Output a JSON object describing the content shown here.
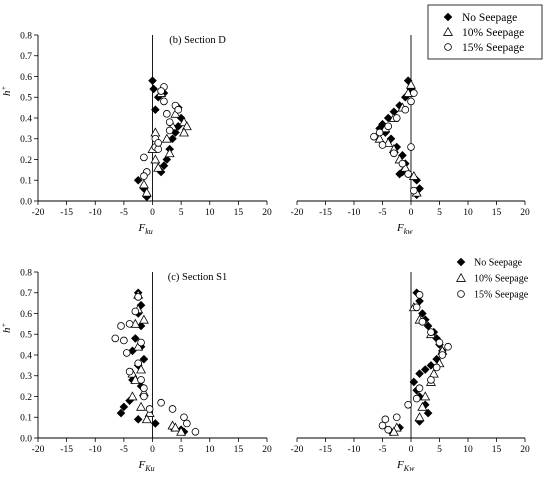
{
  "legends": [
    {
      "entries": [
        "No Seepage",
        "10% Seepage",
        "15% Seepage"
      ]
    },
    {
      "entries": [
        "No Seepage",
        "10% Seepage",
        "15% Seepage"
      ]
    }
  ],
  "chart_data": [
    {
      "type": "scatter",
      "title": "(b) Section D",
      "xlabel_main": "F",
      "xlabel_sub": "ku",
      "ylabel_main": "h",
      "ylabel_sup": "+",
      "xlim": [
        -20,
        20
      ],
      "ylim": [
        0,
        0.8
      ],
      "xticks": [
        -20,
        -15,
        -10,
        -5,
        0,
        5,
        10,
        15,
        20
      ],
      "yticks": [
        0.0,
        0.1,
        0.2,
        0.3,
        0.4,
        0.5,
        0.6,
        0.7,
        0.8
      ],
      "series": [
        {
          "name": "No Seepage",
          "marker": "diamond",
          "points": [
            [
              -2.5,
              0.1
            ],
            [
              -1.5,
              0.06
            ],
            [
              -1.0,
              0.02
            ],
            [
              0.0,
              0.58
            ],
            [
              0.2,
              0.54
            ],
            [
              0.5,
              0.44
            ],
            [
              1.5,
              0.14
            ],
            [
              2.0,
              0.17
            ],
            [
              2.5,
              0.2
            ],
            [
              3.0,
              0.25
            ],
            [
              3.5,
              0.3
            ],
            [
              4.0,
              0.33
            ],
            [
              4.5,
              0.36
            ],
            [
              4.5,
              0.45
            ],
            [
              5.0,
              0.4
            ],
            [
              1.0,
              0.5
            ],
            [
              2.0,
              0.52
            ]
          ]
        },
        {
          "name": "10% Seepage",
          "marker": "triangle",
          "points": [
            [
              -1.5,
              0.08
            ],
            [
              -1.0,
              0.04
            ],
            [
              0.0,
              0.25
            ],
            [
              0.5,
              0.2
            ],
            [
              0.5,
              0.33
            ],
            [
              1.0,
              0.16
            ],
            [
              1.5,
              0.52
            ],
            [
              2.5,
              0.3
            ],
            [
              3.0,
              0.23
            ],
            [
              3.5,
              0.36
            ],
            [
              4.0,
              0.42
            ],
            [
              5.5,
              0.38
            ],
            [
              6.0,
              0.36
            ],
            [
              5.5,
              0.33
            ]
          ]
        },
        {
          "name": "15% Seepage",
          "marker": "circle",
          "points": [
            [
              -1.5,
              0.21
            ],
            [
              -1.0,
              0.14
            ],
            [
              -1.5,
              0.12
            ],
            [
              0.5,
              0.26
            ],
            [
              0.5,
              0.3
            ],
            [
              1.0,
              0.25
            ],
            [
              1.0,
              0.28
            ],
            [
              2.0,
              0.48
            ],
            [
              2.5,
              0.42
            ],
            [
              3.0,
              0.38
            ],
            [
              3.0,
              0.34
            ],
            [
              4.0,
              0.46
            ],
            [
              4.5,
              0.44
            ],
            [
              2.0,
              0.55
            ],
            [
              1.5,
              0.53
            ]
          ]
        }
      ]
    },
    {
      "type": "scatter",
      "title": "",
      "xlabel_main": "F",
      "xlabel_sub": "kw",
      "ylabel_main": "",
      "ylabel_sup": "",
      "xlim": [
        -20,
        20
      ],
      "ylim": [
        0,
        0.8
      ],
      "xticks": [
        -20,
        -15,
        -10,
        -5,
        0,
        5,
        10,
        15,
        20
      ],
      "yticks": [],
      "series": [
        {
          "name": "No Seepage",
          "marker": "diamond",
          "points": [
            [
              -0.5,
              0.58
            ],
            [
              0.0,
              0.54
            ],
            [
              -1.0,
              0.5
            ],
            [
              -2.0,
              0.46
            ],
            [
              -3.0,
              0.43
            ],
            [
              -4.0,
              0.4
            ],
            [
              -5.0,
              0.37
            ],
            [
              -5.5,
              0.35
            ],
            [
              -4.5,
              0.33
            ],
            [
              -3.5,
              0.3
            ],
            [
              -2.5,
              0.26
            ],
            [
              -1.5,
              0.22
            ],
            [
              -1.0,
              0.18
            ],
            [
              -1.5,
              0.14
            ],
            [
              -2.0,
              0.13
            ],
            [
              1.0,
              0.1
            ],
            [
              1.5,
              0.06
            ],
            [
              1.0,
              0.03
            ]
          ]
        },
        {
          "name": "10% Seepage",
          "marker": "triangle",
          "points": [
            [
              0.0,
              0.56
            ],
            [
              -0.5,
              0.52
            ],
            [
              -1.5,
              0.45
            ],
            [
              -3.0,
              0.4
            ],
            [
              -4.5,
              0.35
            ],
            [
              -5.5,
              0.3
            ],
            [
              -4.0,
              0.28
            ],
            [
              -3.0,
              0.25
            ],
            [
              -2.0,
              0.2
            ],
            [
              -1.0,
              0.16
            ],
            [
              0.5,
              0.12
            ],
            [
              1.0,
              0.04
            ]
          ]
        },
        {
          "name": "15% Seepage",
          "marker": "circle",
          "points": [
            [
              0.5,
              0.52
            ],
            [
              0.0,
              0.48
            ],
            [
              -1.0,
              0.44
            ],
            [
              -2.5,
              0.4
            ],
            [
              -4.0,
              0.36
            ],
            [
              -5.5,
              0.33
            ],
            [
              -6.5,
              0.31
            ],
            [
              -5.0,
              0.27
            ],
            [
              -3.0,
              0.23
            ],
            [
              -1.5,
              0.18
            ],
            [
              -0.5,
              0.13
            ],
            [
              0.0,
              0.26
            ],
            [
              0.5,
              0.05
            ]
          ]
        }
      ]
    },
    {
      "type": "scatter",
      "title": "(c) Section S1",
      "xlabel_main": "F",
      "xlabel_sub": "Ku",
      "ylabel_main": "h",
      "ylabel_sup": "+",
      "xlim": [
        -20,
        20
      ],
      "ylim": [
        0,
        0.8
      ],
      "xticks": [
        -20,
        -15,
        -10,
        -5,
        0,
        5,
        10,
        15,
        20
      ],
      "yticks": [
        0.0,
        0.1,
        0.2,
        0.3,
        0.4,
        0.5,
        0.6,
        0.7,
        0.8
      ],
      "series": [
        {
          "name": "No Seepage",
          "marker": "diamond",
          "points": [
            [
              -2.5,
              0.7
            ],
            [
              -2.0,
              0.64
            ],
            [
              -2.5,
              0.6
            ],
            [
              -2.0,
              0.54
            ],
            [
              -3.0,
              0.48
            ],
            [
              -2.0,
              0.44
            ],
            [
              -3.5,
              0.42
            ],
            [
              -1.5,
              0.38
            ],
            [
              -2.5,
              0.35
            ],
            [
              -3.5,
              0.28
            ],
            [
              -2.0,
              0.25
            ],
            [
              -4.0,
              0.18
            ],
            [
              -5.0,
              0.15
            ],
            [
              -5.5,
              0.12
            ],
            [
              -2.5,
              0.09
            ],
            [
              0.5,
              0.07
            ],
            [
              3.5,
              0.05
            ],
            [
              5.0,
              0.04
            ],
            [
              5.5,
              0.03
            ]
          ]
        },
        {
          "name": "10% Seepage",
          "marker": "triangle",
          "points": [
            [
              -2.5,
              0.69
            ],
            [
              -2.5,
              0.62
            ],
            [
              -1.5,
              0.57
            ],
            [
              -3.0,
              0.55
            ],
            [
              -2.5,
              0.44
            ],
            [
              -3.5,
              0.31
            ],
            [
              -2.0,
              0.33
            ],
            [
              -3.0,
              0.28
            ],
            [
              -1.5,
              0.22
            ],
            [
              -3.5,
              0.2
            ],
            [
              -2.0,
              0.15
            ],
            [
              -0.5,
              0.12
            ],
            [
              -1.0,
              0.09
            ],
            [
              3.5,
              0.06
            ],
            [
              4.0,
              0.05
            ],
            [
              5.0,
              0.03
            ]
          ]
        },
        {
          "name": "15% Seepage",
          "marker": "circle",
          "points": [
            [
              -2.5,
              0.68
            ],
            [
              -3.0,
              0.61
            ],
            [
              -4.0,
              0.55
            ],
            [
              -5.5,
              0.54
            ],
            [
              -6.5,
              0.48
            ],
            [
              -5.0,
              0.47
            ],
            [
              -2.0,
              0.46
            ],
            [
              -4.5,
              0.41
            ],
            [
              -2.5,
              0.36
            ],
            [
              -4.0,
              0.32
            ],
            [
              -2.0,
              0.28
            ],
            [
              -1.5,
              0.24
            ],
            [
              -1.5,
              0.2
            ],
            [
              -0.5,
              0.14
            ],
            [
              1.5,
              0.17
            ],
            [
              3.5,
              0.14
            ],
            [
              5.5,
              0.1
            ],
            [
              6.0,
              0.07
            ],
            [
              7.5,
              0.03
            ]
          ]
        }
      ]
    },
    {
      "type": "scatter",
      "title": "",
      "xlabel_main": "F",
      "xlabel_sub": "Kw",
      "ylabel_main": "",
      "ylabel_sup": "",
      "xlim": [
        -20,
        20
      ],
      "ylim": [
        0,
        0.8
      ],
      "xticks": [
        -20,
        -15,
        -10,
        -5,
        0,
        5,
        10,
        15,
        20
      ],
      "yticks": [],
      "series": [
        {
          "name": "No Seepage",
          "marker": "diamond",
          "points": [
            [
              1.0,
              0.7
            ],
            [
              1.5,
              0.66
            ],
            [
              2.0,
              0.6
            ],
            [
              2.5,
              0.57
            ],
            [
              3.0,
              0.54
            ],
            [
              4.0,
              0.51
            ],
            [
              4.5,
              0.48
            ],
            [
              5.0,
              0.45
            ],
            [
              5.5,
              0.42
            ],
            [
              4.5,
              0.38
            ],
            [
              3.5,
              0.35
            ],
            [
              2.5,
              0.33
            ],
            [
              1.5,
              0.31
            ],
            [
              0.5,
              0.27
            ],
            [
              1.0,
              0.23
            ],
            [
              1.5,
              0.2
            ],
            [
              2.5,
              0.16
            ],
            [
              3.0,
              0.12
            ],
            [
              1.5,
              0.08
            ],
            [
              -2.0,
              0.05
            ],
            [
              -3.5,
              0.03
            ]
          ]
        },
        {
          "name": "10% Seepage",
          "marker": "triangle",
          "points": [
            [
              0.5,
              0.63
            ],
            [
              1.5,
              0.57
            ],
            [
              3.5,
              0.5
            ],
            [
              5.5,
              0.42
            ],
            [
              5.0,
              0.36
            ],
            [
              4.0,
              0.31
            ],
            [
              3.5,
              0.27
            ],
            [
              2.5,
              0.2
            ],
            [
              2.0,
              0.15
            ],
            [
              1.5,
              0.1
            ],
            [
              -2.5,
              0.05
            ],
            [
              -3.0,
              0.03
            ]
          ]
        },
        {
          "name": "15% Seepage",
          "marker": "circle",
          "points": [
            [
              1.5,
              0.69
            ],
            [
              1.0,
              0.63
            ],
            [
              2.0,
              0.56
            ],
            [
              3.5,
              0.51
            ],
            [
              5.0,
              0.46
            ],
            [
              6.5,
              0.44
            ],
            [
              5.5,
              0.4
            ],
            [
              4.5,
              0.34
            ],
            [
              3.5,
              0.28
            ],
            [
              1.5,
              0.24
            ],
            [
              1.0,
              0.19
            ],
            [
              -0.5,
              0.16
            ],
            [
              -2.5,
              0.1
            ],
            [
              -4.5,
              0.09
            ],
            [
              -5.0,
              0.06
            ],
            [
              -4.0,
              0.04
            ]
          ]
        }
      ]
    }
  ]
}
